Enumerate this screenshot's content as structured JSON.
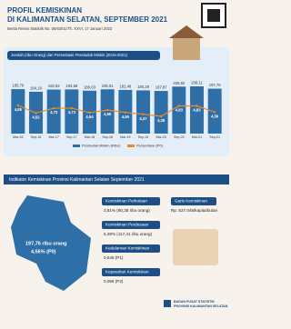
{
  "header": {
    "title_1": "PROFIL KEMISKINAN",
    "title_2": "DI KALIMANTAN SELATAN, SEPTEMBER  2021",
    "subtitle": "Berita Resmi Statistik No. 05/63/01/Th. XXVI, 17 Januari 2022"
  },
  "chart_data": {
    "type": "bar",
    "title": "Jumlah (ribu Orang) dan Persentase Penduduk Miskin (2016-2021)",
    "categories": [
      "Mar-16",
      "Sep-16",
      "Mar-17",
      "Sep-17",
      "Mar-18",
      "Sep-18",
      "Mar-19",
      "Sep-19",
      "Mar-20",
      "Sep-20",
      "Mar-21",
      "Sep-21"
    ],
    "series": [
      {
        "name": "Penduduk Miskin (Ribu)",
        "color": "#2f6fa8",
        "values": [
          195.7,
          184.16,
          193.92,
          194.56,
          189.03,
          195.01,
          192.48,
          190.29,
          187.87,
          206.92,
          208.11,
          197.76
        ],
        "value_labels": [
          "195,70",
          "184,16",
          "193,92",
          "194,56",
          "189,03",
          "195,01",
          "192,48",
          "190,29",
          "187,87",
          "206,92",
          "208,11",
          "197,76"
        ]
      },
      {
        "name": "Persentase (P0)",
        "color": "#f08a24",
        "type": "line",
        "values": [
          4.85,
          4.52,
          4.73,
          4.73,
          4.54,
          4.65,
          4.55,
          4.47,
          4.38,
          4.83,
          4.83,
          4.56
        ],
        "value_labels": [
          "4,85",
          "4,52",
          "4,73",
          "4,73",
          "4,54",
          "4,65",
          "4,55",
          "4,47",
          "4,38",
          "4,83",
          "4,83",
          "4,56"
        ]
      }
    ]
  },
  "indicators": {
    "title": "Indikator Kemiskinan Provinsi Kalimantan Selatan September 2021",
    "total": "197,76 ribu orang",
    "total_pct": "4,56% (P0)",
    "items": [
      {
        "label": "Kemiskinan Perkotaan",
        "value": "3,81% (80,35 ribu orang)"
      },
      {
        "label": "Kemiskinan Perdesaan",
        "value": "5,28% (117,41 ribu orang)"
      },
      {
        "label": "Kedalaman Kemiskinan",
        "value": "0,546 (P1)"
      },
      {
        "label": "Keparahan Kemiskinan",
        "value": "0,096 (P2)"
      }
    ],
    "line": {
      "label": "Garis Kemiskinan",
      "value": "Rp. 527.045/kapita/bulan"
    }
  },
  "footer": {
    "org_1": "BADAN PUSAT STATISTIK",
    "org_2": "PROVINSI KALIMANTAN SELATAN"
  }
}
